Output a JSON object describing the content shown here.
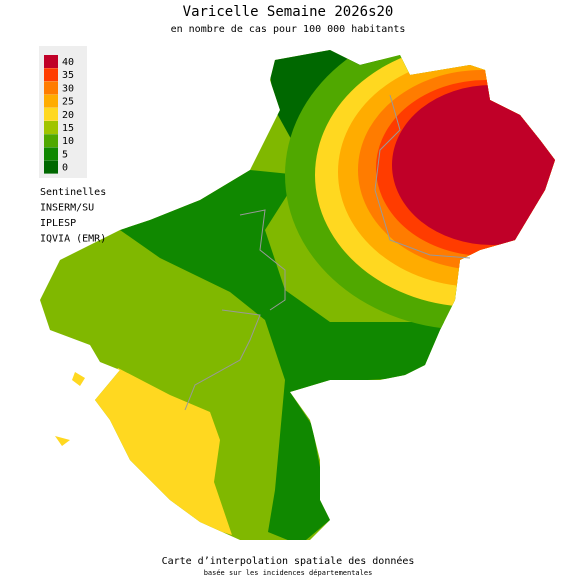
{
  "header": {
    "title": "Varicelle Semaine 2026s20",
    "subtitle": "en nombre de cas pour 100 000 habitants"
  },
  "legend": {
    "items": [
      {
        "label": "40",
        "color": "#c00028"
      },
      {
        "label": "35",
        "color": "#ff3c00"
      },
      {
        "label": "30",
        "color": "#ff7c00"
      },
      {
        "label": "25",
        "color": "#ffac00"
      },
      {
        "label": "20",
        "color": "#ffd820"
      },
      {
        "label": "15",
        "color": "#a0c400"
      },
      {
        "label": "10",
        "color": "#50a800"
      },
      {
        "label": "5",
        "color": "#108800"
      },
      {
        "label": "0",
        "color": "#006800"
      }
    ]
  },
  "sources": [
    "Sentinelles",
    "INSERM/SU",
    "IPLESP",
    "IQVIA (EMR)"
  ],
  "footer": {
    "line1": "Carte d’interpolation spatiale des données",
    "line2": "basée sur les incidences départementales"
  }
}
